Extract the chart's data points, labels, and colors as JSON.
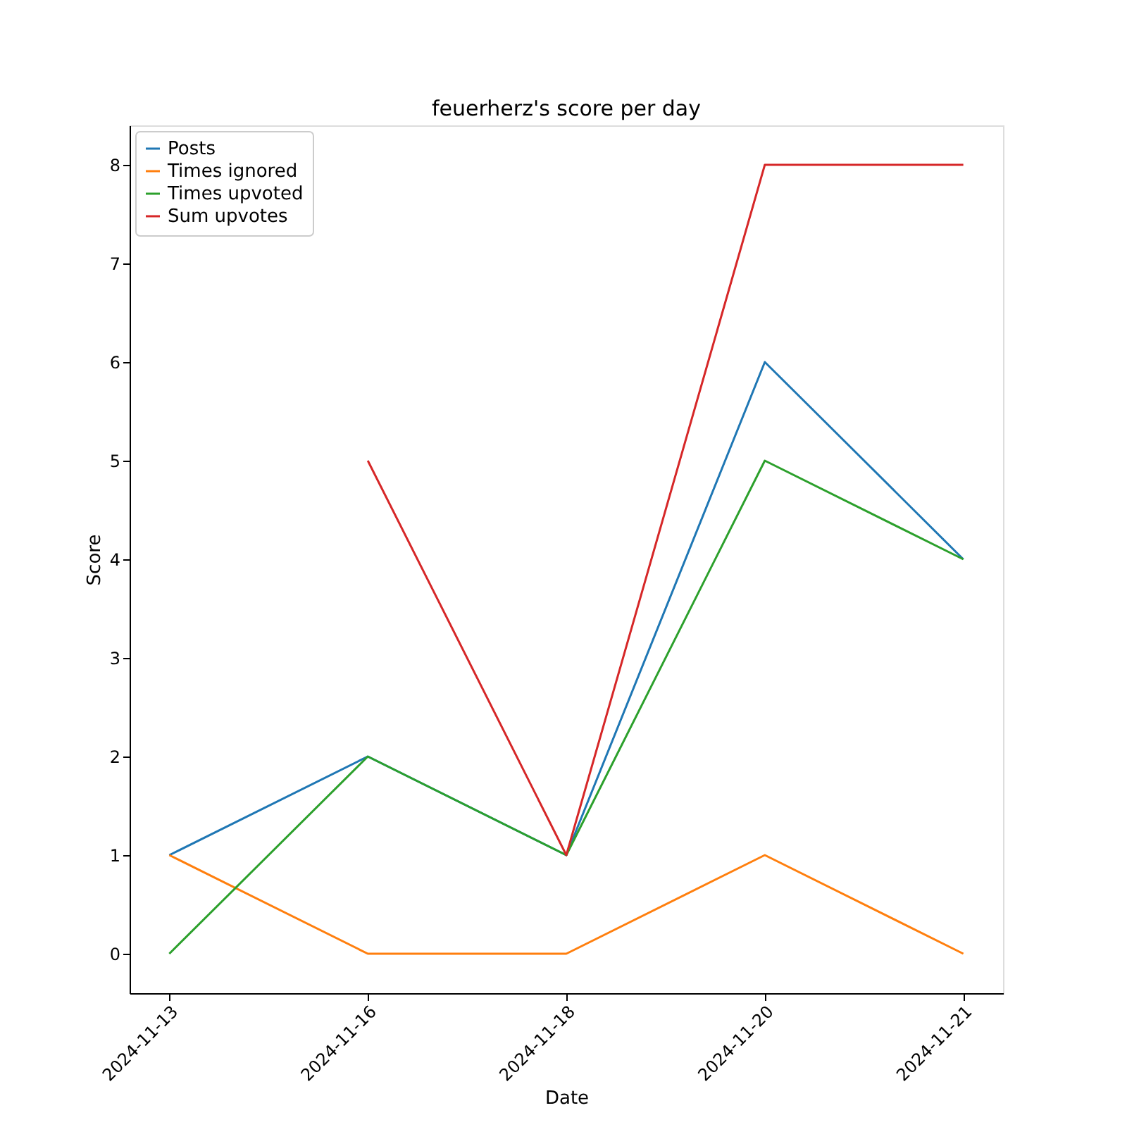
{
  "chart_data": {
    "type": "line",
    "title": "feuerherz's score per day",
    "xlabel": "Date",
    "ylabel": "Score",
    "categories": [
      "2024-11-13",
      "2024-11-16",
      "2024-11-18",
      "2024-11-20",
      "2024-11-21"
    ],
    "series": [
      {
        "name": "Posts",
        "color": "#1f77b4",
        "values": [
          1,
          2,
          1,
          6,
          4
        ]
      },
      {
        "name": "Times ignored",
        "color": "#ff7f0e",
        "values": [
          1,
          0,
          0,
          1,
          0
        ]
      },
      {
        "name": "Times upvoted",
        "color": "#2ca02c",
        "values": [
          0,
          2,
          1,
          5,
          4
        ]
      },
      {
        "name": "Sum upvotes",
        "color": "#d62728",
        "values": [
          null,
          5,
          1,
          8,
          8
        ]
      }
    ],
    "ylim": [
      -0.4,
      8.4
    ],
    "yticks": [
      0,
      1,
      2,
      3,
      4,
      5,
      6,
      7,
      8
    ],
    "grid": false,
    "legend": "top left",
    "marker": "none",
    "line_style": "solid"
  }
}
